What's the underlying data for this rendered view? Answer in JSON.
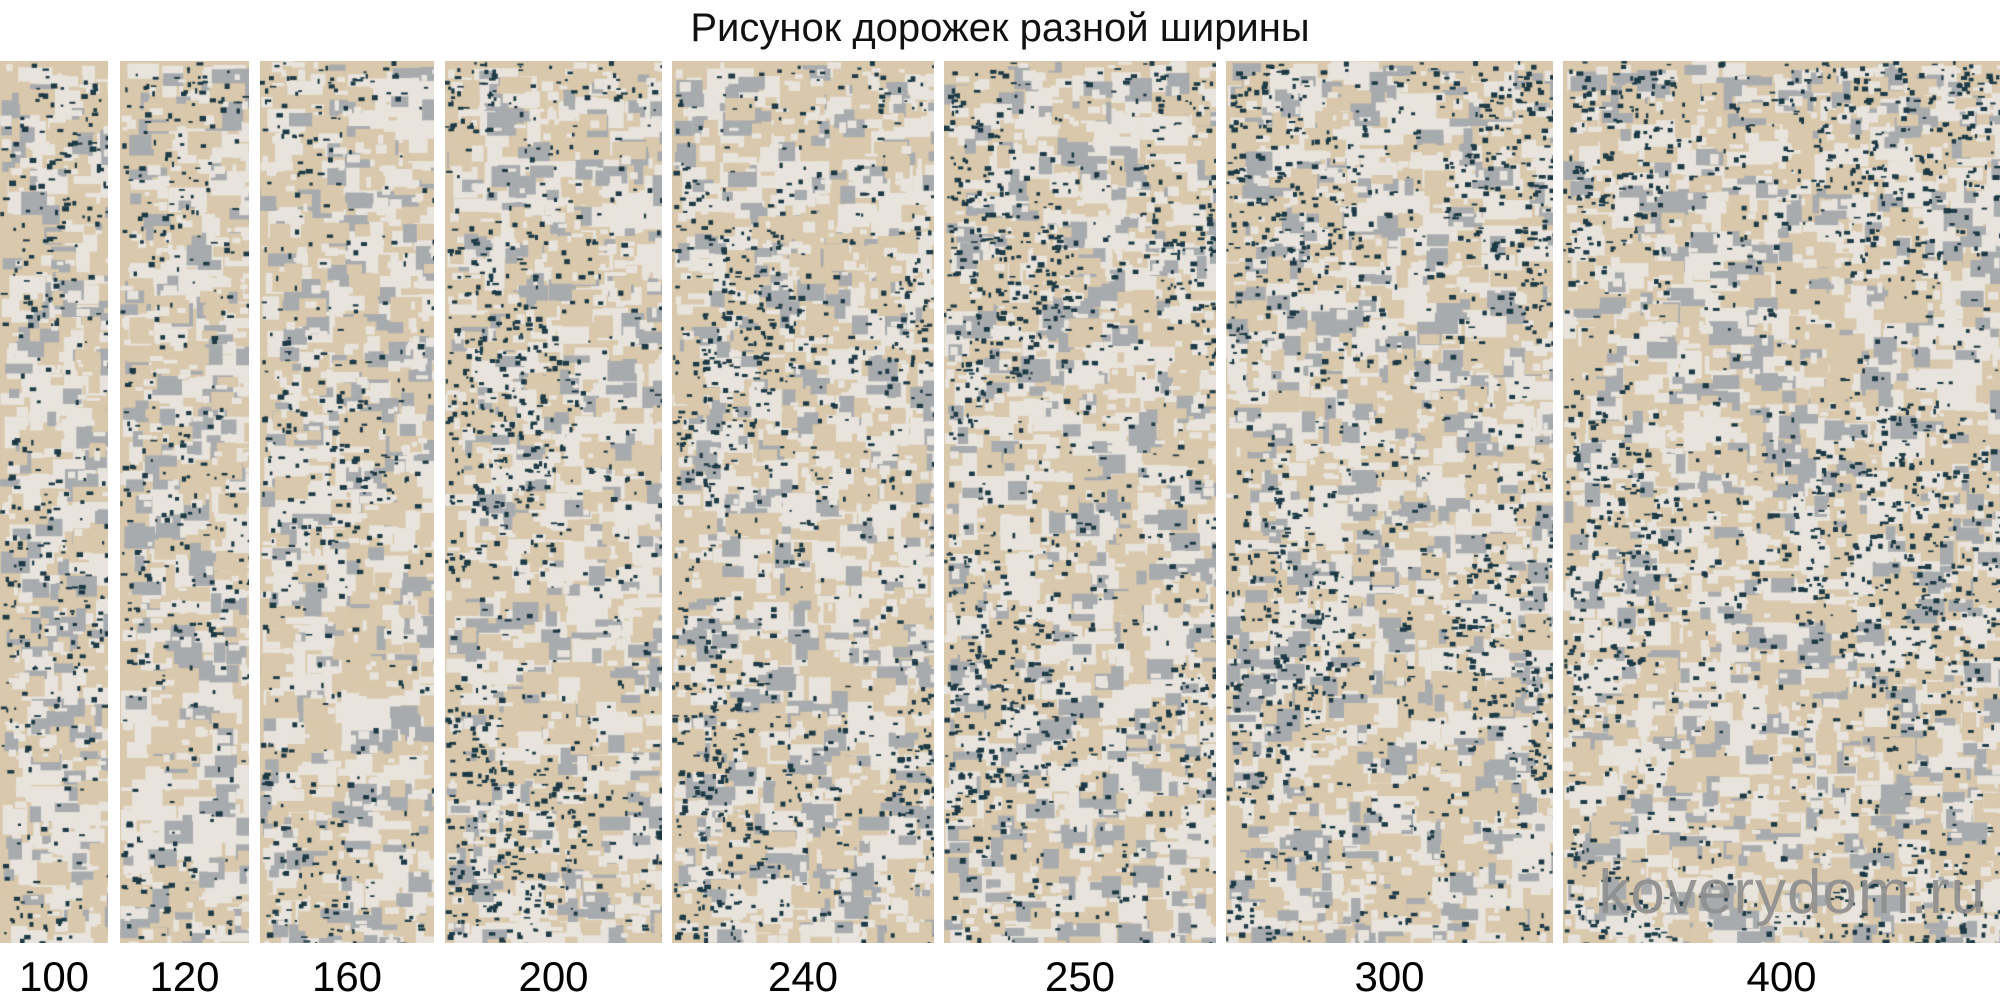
{
  "title": "Рисунок дорожек разной ширины",
  "runners": [
    {
      "width_label": "100"
    },
    {
      "width_label": "120"
    },
    {
      "width_label": "160"
    },
    {
      "width_label": "200"
    },
    {
      "width_label": "240"
    },
    {
      "width_label": "250"
    },
    {
      "width_label": "300"
    },
    {
      "width_label": "400"
    }
  ],
  "watermark": "koverydom.ru",
  "colors": {
    "beige": "#d9c8ab",
    "cream": "#e8e4dd",
    "gray": "#a8abae",
    "dark_teal": "#1d3a46"
  }
}
